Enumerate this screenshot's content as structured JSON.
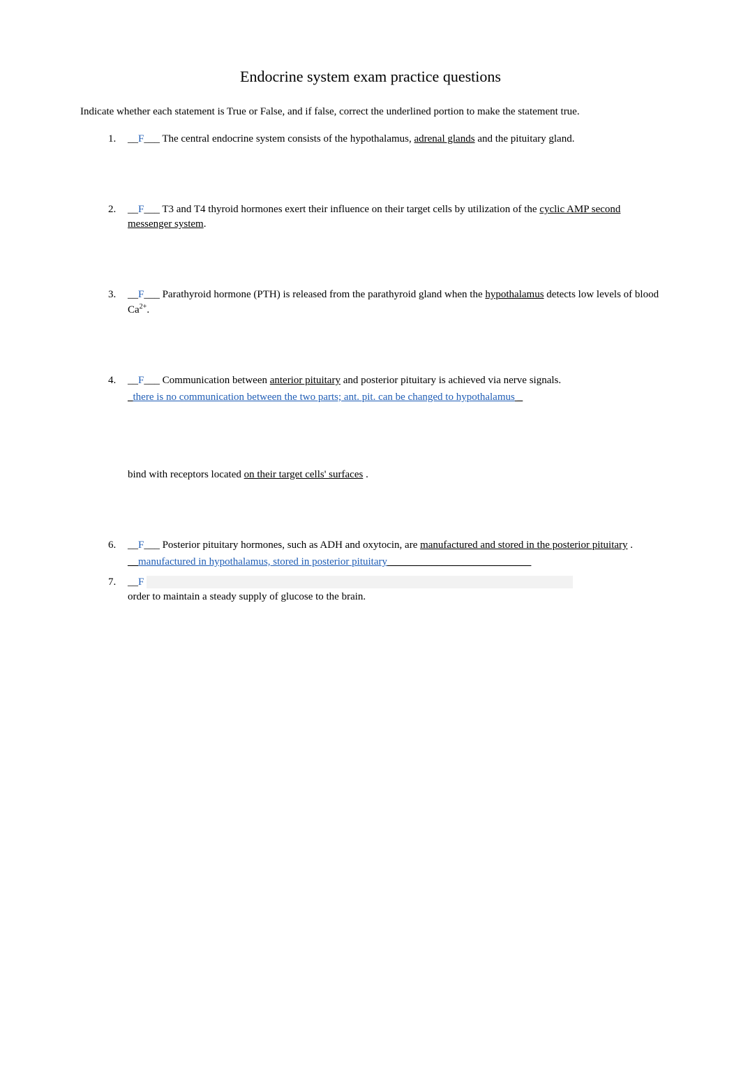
{
  "title": "Endocrine system exam practice questions",
  "instructions": "Indicate whether each statement is True or False, and if false, correct the underlined portion to make the statement true.",
  "answer_color": "#1f5db5",
  "text_color": "#000000",
  "background_color": "#ffffff",
  "highlight_color": "#f2f2f2",
  "font_family": "Georgia, Times New Roman, serif",
  "title_fontsize": 22,
  "body_fontsize": 15,
  "questions": [
    {
      "number": "1.",
      "prefix": "__",
      "answer": "F",
      "suffix": "___",
      "text_before": " The central endocrine system consists of the hypothalamus, ",
      "underlined": "adrenal glands",
      "text_after": " and the pituitary gland.",
      "correction": ""
    },
    {
      "number": "2.",
      "prefix": "__",
      "answer": "F",
      "suffix": "___",
      "text_before": " T3 and T4 thyroid hormones exert their influence on their target cells by utilization of the ",
      "underlined": "cyclic AMP second messenger system",
      "text_after": ".",
      "correction": ""
    },
    {
      "number": "3.",
      "prefix": "__",
      "answer": "F",
      "suffix": "___",
      "text_before": " Parathyroid hormone (PTH) is released from the parathyroid gland when the ",
      "underlined": "hypothalamus",
      "text_after": " detects low levels of blood Ca",
      "super": "2+",
      "text_end": ".",
      "correction": ""
    },
    {
      "number": "4.",
      "prefix": "__",
      "answer": "F",
      "suffix": "___",
      "text_before": " Communication between ",
      "underlined": "anterior pituitary",
      "text_after": "   and posterior pituitary is achieved via nerve signals.",
      "correction_prefix": "_",
      "correction": "there is no communication between the two parts; ant. pit. can be changed to hypothalamus",
      "correction_suffix": "    _"
    }
  ],
  "fragment": {
    "text_before": "bind with receptors located ",
    "underlined": "on their target cells' surfaces",
    "text_after": "  ."
  },
  "questions_bottom": [
    {
      "number": "6.",
      "prefix": "__",
      "answer": "F",
      "suffix": "___",
      "text_before": " Posterior pituitary hormones, such as ADH and oxytocin, are ",
      "underlined": "manufactured and stored in the posterior pituitary",
      "text_after": "  .",
      "correction_prefix": "__",
      "correction": "manufactured in hypothalamus, stored in posterior pituitary",
      "correction_suffix": "  ___________________________"
    },
    {
      "number": "7.",
      "prefix": "__",
      "answer": "F",
      "suffix": "",
      "text_before": "",
      "underlined": "",
      "text_after": "",
      "second_line": "order to maintain a steady supply of glucose to the brain."
    }
  ]
}
